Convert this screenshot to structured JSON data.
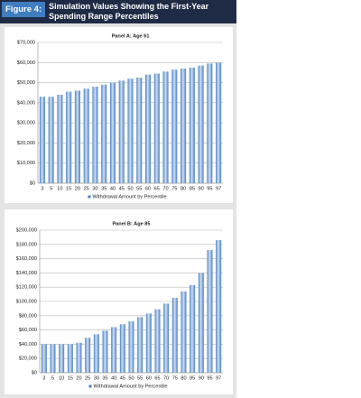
{
  "header": {
    "figure_label": "Figure 4:",
    "title": "Simulation Values Showing the First-Year Spending Range Percentiles"
  },
  "chart_data": [
    {
      "type": "bar",
      "title": "Panel A: Age 61",
      "categories": [
        "3",
        "5",
        "10",
        "15",
        "20",
        "25",
        "30",
        "35",
        "40",
        "45",
        "50",
        "55",
        "60",
        "65",
        "70",
        "75",
        "80",
        "85",
        "90",
        "95",
        "97"
      ],
      "series": [
        {
          "name": "Withdrawal Amount by Percentile",
          "color": "#4a7fc1",
          "values": [
            43000,
            43000,
            44000,
            45500,
            46000,
            47000,
            48000,
            49000,
            50000,
            51000,
            52000,
            52500,
            54000,
            54500,
            55500,
            56500,
            57000,
            57500,
            58500,
            59500,
            60000
          ]
        }
      ],
      "ylim": [
        0,
        70000
      ],
      "yticks": [
        {
          "value": 0,
          "label": "$0"
        },
        {
          "value": 10000,
          "label": "$10,000"
        },
        {
          "value": 20000,
          "label": "$20,000"
        },
        {
          "value": 30000,
          "label": "$30,000"
        },
        {
          "value": 40000,
          "label": "$40,000"
        },
        {
          "value": 50000,
          "label": "$50,000"
        },
        {
          "value": 60000,
          "label": "$60,000"
        },
        {
          "value": 70000,
          "label": "$70,000"
        }
      ],
      "grid": true,
      "legend": "bottom"
    },
    {
      "type": "bar",
      "title": "Panel B: Age 85",
      "categories": [
        "3",
        "5",
        "10",
        "15",
        "20",
        "25",
        "30",
        "35",
        "40",
        "45",
        "50",
        "55",
        "60",
        "65",
        "70",
        "75",
        "80",
        "85",
        "90",
        "95",
        "97"
      ],
      "series": [
        {
          "name": "Withdrawal Amount by Percentile",
          "color": "#4a7fc1",
          "values": [
            40000,
            40000,
            40000,
            40000,
            42000,
            49000,
            54000,
            59000,
            64000,
            68000,
            72000,
            78000,
            83000,
            89000,
            97000,
            105000,
            114000,
            123000,
            140000,
            172000,
            186000
          ]
        }
      ],
      "ylim": [
        0,
        200000
      ],
      "yticks": [
        {
          "value": 0,
          "label": "$0"
        },
        {
          "value": 20000,
          "label": "$20,000"
        },
        {
          "value": 40000,
          "label": "$40,000"
        },
        {
          "value": 60000,
          "label": "$60,000"
        },
        {
          "value": 80000,
          "label": "$80,000"
        },
        {
          "value": 100000,
          "label": "$100,000"
        },
        {
          "value": 120000,
          "label": "$120,000"
        },
        {
          "value": 140000,
          "label": "$140,000"
        },
        {
          "value": 160000,
          "label": "$160,000"
        },
        {
          "value": 180000,
          "label": "$180,000"
        },
        {
          "value": 200000,
          "label": "$200,000"
        }
      ],
      "grid": true,
      "legend": "bottom"
    }
  ]
}
